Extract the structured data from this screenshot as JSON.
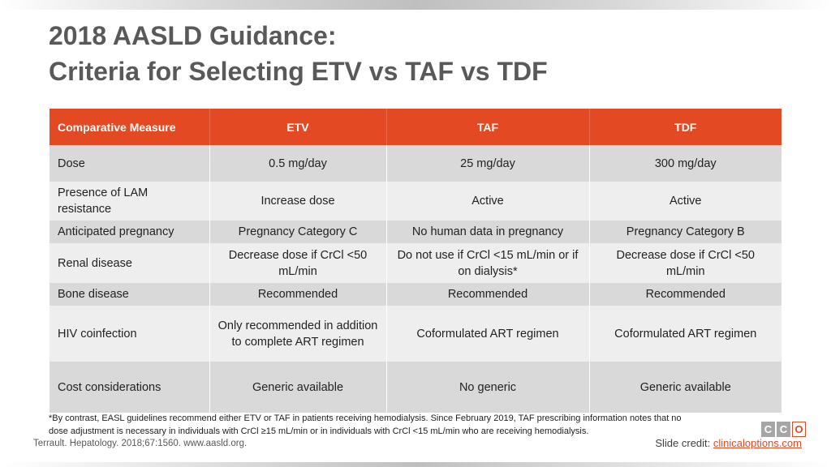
{
  "title": {
    "line1": "2018 AASLD Guidance:",
    "line2": "Criteria for Selecting ETV vs TAF vs TDF"
  },
  "table": {
    "headers": [
      "Comparative Measure",
      "ETV",
      "TAF",
      "TDF"
    ],
    "rows": [
      [
        "Dose",
        "0.5 mg/day",
        "25 mg/day",
        "300 mg/day"
      ],
      [
        "Presence of LAM resistance",
        "Increase dose",
        "Active",
        "Active"
      ],
      [
        "Anticipated pregnancy",
        "Pregnancy Category C",
        "No human data in pregnancy",
        "Pregnancy Category B"
      ],
      [
        "Renal disease",
        "Decrease dose if CrCl <50 mL/min",
        "Do not use if CrCl <15 mL/min or if on dialysis*",
        "Decrease dose if CrCl <50 mL/min"
      ],
      [
        "Bone disease",
        "Recommended",
        "Recommended",
        "Recommended"
      ],
      [
        "HIV coinfection",
        "Only recommended in addition to complete ART regimen",
        "Coformulated ART regimen",
        "Coformulated ART regimen"
      ],
      [
        "Cost considerations",
        "Generic available",
        "No generic",
        "Generic available"
      ]
    ]
  },
  "footnote": "*By contrast, EASL guidelines recommend either ETV or TAF in patients receiving hemodialysis. Since February 2019, TAF prescribing information notes that no dose adjustment is necessary in individuals with CrCl ≥15 mL/min or in individuals with CrCl <15 mL/min who are receiving hemodialysis.",
  "citation": "Terrault. Hepatology. 2018;67:1560. www.aasld.org.",
  "logo": {
    "letters": [
      "C",
      "C",
      "O"
    ]
  },
  "credit": {
    "prefix": "Slide credit: ",
    "link": "clinicaloptions.com"
  },
  "colors": {
    "accent": "#e34a24",
    "title": "#595959",
    "row_dark": "#d9d9d9",
    "row_light": "#eeeeee"
  }
}
